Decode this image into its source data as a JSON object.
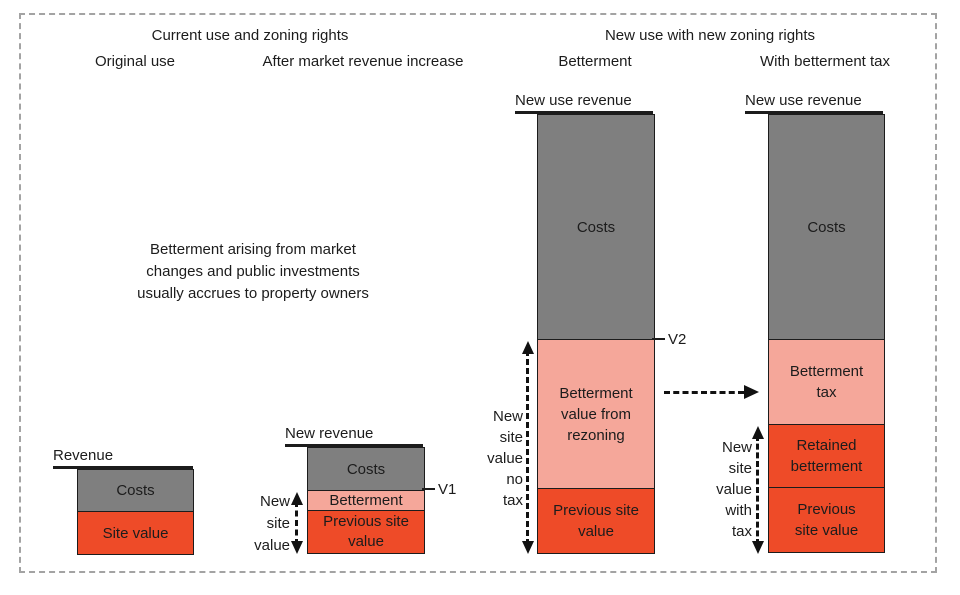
{
  "sections": {
    "current": "Current use and zoning rights",
    "new": "New use with new zoning rights"
  },
  "columns": {
    "original": "Original use",
    "market": "After market revenue increase",
    "betterment": "Betterment",
    "tax": "With betterment tax"
  },
  "note": [
    "Betterment arising from market",
    "changes and public investments",
    "usually accrues to property owners"
  ],
  "colors": {
    "costs_gray": "#7f7f7f",
    "site_value_red": "#ee4b28",
    "betterment_pink": "#f5a79a",
    "ink": "#1c1c1c",
    "frame_dash": "#a3a3a3"
  },
  "bars": {
    "original": {
      "revenue": "Revenue",
      "costs": "Costs",
      "site_value": "Site value"
    },
    "market": {
      "revenue": "New revenue",
      "costs": "Costs",
      "betterment": "Betterment",
      "previous_site_value": "Previous site value",
      "marker": "V1",
      "annotation": [
        "New",
        "site",
        "value"
      ]
    },
    "betterment": {
      "revenue": "New use revenue",
      "costs": "Costs",
      "betterment_value": "Betterment value from rezoning",
      "previous_site_value": "Previous site value",
      "marker": "V2",
      "annotation": [
        "New",
        "site",
        "value",
        "no",
        "tax"
      ]
    },
    "tax": {
      "revenue": "New use revenue",
      "costs": "Costs",
      "betterment_tax": "Betterment tax",
      "retained_betterment": "Retained betterment",
      "previous_site_value": "Previous site value",
      "annotation": [
        "New",
        "site",
        "value",
        "with",
        "tax"
      ]
    }
  }
}
